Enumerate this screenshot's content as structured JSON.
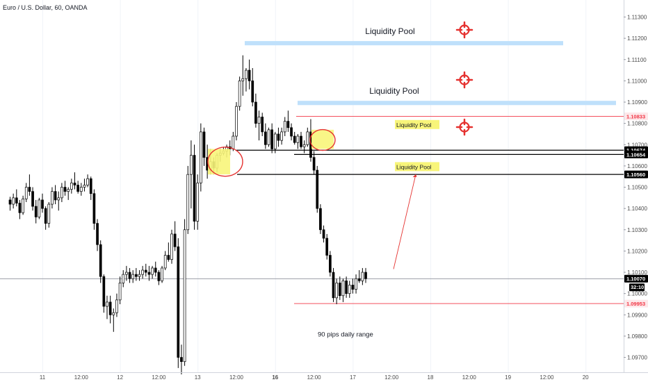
{
  "header": {
    "symbol": "Euro / U.S. Dollar, 60, OANDA"
  },
  "chart_data": {
    "type": "candlestick",
    "title": "Euro / U.S. Dollar, 60, OANDA",
    "ylim": [
      1.0963,
      1.1138
    ],
    "y_ticks": [
      "1.11300",
      "1.11200",
      "1.11100",
      "1.11000",
      "1.10900",
      "1.10800",
      "1.10700",
      "1.10600",
      "1.10500",
      "1.10400",
      "1.10300",
      "1.10200",
      "1.10100",
      "1.10000",
      "1.09900",
      "1.09800",
      "1.09700"
    ],
    "x_ticks": [
      "12:00",
      "11",
      "12:00",
      "12",
      "12:00",
      "13",
      "12:00",
      "16",
      "12:00",
      "17",
      "12:00",
      "18",
      "12:00",
      "19",
      "12:00",
      "20"
    ],
    "x_ticks_bold": [
      "16"
    ],
    "x_tick_hours": [
      -24,
      0,
      12,
      24,
      36,
      48,
      60,
      72,
      84,
      96,
      108,
      120,
      132,
      144,
      156,
      168
    ],
    "last_price": "1.10070",
    "countdown": "32:10",
    "levels": [
      {
        "price": 1.10833,
        "label": "1.10833",
        "color": "#f23645"
      },
      {
        "price": 1.10674,
        "label": "1.10674",
        "color": "#000000"
      },
      {
        "price": 1.10654,
        "label": "1.10654",
        "color": "#000000"
      },
      {
        "price": 1.1056,
        "label": "1.10560",
        "color": "#000000"
      },
      {
        "price": 1.1007,
        "label": "1.10070",
        "color": "#000000"
      },
      {
        "price": 1.09953,
        "label": "1.09953",
        "color": "#f23645"
      }
    ],
    "zones": [
      {
        "label": "Liquidity Pool",
        "from_price": 1.11167,
        "to_price": 1.11187
      },
      {
        "label": "Liquidity Pool",
        "from_price": 1.10886,
        "to_price": 1.10906
      }
    ],
    "notes": [
      {
        "text": "Liquidity Pool",
        "price": 1.10793
      },
      {
        "text": "Liquidity Pool",
        "price": 1.10595
      },
      {
        "text": "90 pips daily range",
        "price": 1.09808
      }
    ],
    "candles": [
      [
        1.1044,
        1.10455,
        1.1039,
        1.1042
      ],
      [
        1.1042,
        1.1047,
        1.104,
        1.1045
      ],
      [
        1.1045,
        1.1049,
        1.1041,
        1.10425
      ],
      [
        1.10425,
        1.1044,
        1.1035,
        1.1038
      ],
      [
        1.1038,
        1.1046,
        1.1037,
        1.10445
      ],
      [
        1.10445,
        1.1052,
        1.1043,
        1.105
      ],
      [
        1.105,
        1.1056,
        1.1046,
        1.1048
      ],
      [
        1.1048,
        1.105,
        1.1039,
        1.1041
      ],
      [
        1.1041,
        1.1044,
        1.1033,
        1.1036
      ],
      [
        1.1036,
        1.1045,
        1.1035,
        1.1044
      ],
      [
        1.1044,
        1.1047,
        1.1038,
        1.104
      ],
      [
        1.104,
        1.1041,
        1.103,
        1.1033
      ],
      [
        1.1033,
        1.1043,
        1.1031,
        1.1042
      ],
      [
        1.1042,
        1.105,
        1.104,
        1.1048
      ],
      [
        1.1048,
        1.1051,
        1.1042,
        1.1044
      ],
      [
        1.1044,
        1.1048,
        1.1039,
        1.1045
      ],
      [
        1.1045,
        1.1052,
        1.1043,
        1.105
      ],
      [
        1.105,
        1.1053,
        1.1046,
        1.1048
      ],
      [
        1.1048,
        1.105,
        1.1044,
        1.1049
      ],
      [
        1.1049,
        1.1054,
        1.1047,
        1.1052
      ],
      [
        1.1052,
        1.1057,
        1.1049,
        1.1051
      ],
      [
        1.1051,
        1.1053,
        1.1047,
        1.1048
      ],
      [
        1.1048,
        1.1052,
        1.1046,
        1.105
      ],
      [
        1.105,
        1.1054,
        1.1048,
        1.1051
      ],
      [
        1.1051,
        1.1056,
        1.105,
        1.1054
      ],
      [
        1.1054,
        1.1055,
        1.1044,
        1.1047
      ],
      [
        1.1047,
        1.1049,
        1.103,
        1.1033
      ],
      [
        1.1033,
        1.1035,
        1.102,
        1.1023
      ],
      [
        1.1023,
        1.1025,
        1.1005,
        1.1008
      ],
      [
        1.1008,
        1.1009,
        1.0991,
        1.0994
      ],
      [
        1.0994,
        1.0999,
        1.0988,
        1.0996
      ],
      [
        1.0996,
        1.0999,
        1.0986,
        1.099
      ],
      [
        1.099,
        1.0993,
        1.0982,
        1.0991
      ],
      [
        1.0991,
        1.1,
        1.0989,
        1.0997
      ],
      [
        1.0997,
        1.1008,
        1.0995,
        1.1005
      ],
      [
        1.1005,
        1.1011,
        1.1003,
        1.1009
      ],
      [
        1.1009,
        1.1013,
        1.1006,
        1.101
      ],
      [
        1.101,
        1.1012,
        1.1005,
        1.1007
      ],
      [
        1.1007,
        1.1011,
        1.1005,
        1.1009
      ],
      [
        1.1009,
        1.1012,
        1.1006,
        1.1008
      ],
      [
        1.1008,
        1.1011,
        1.1006,
        1.1009
      ],
      [
        1.1009,
        1.1013,
        1.1007,
        1.1011
      ],
      [
        1.1011,
        1.1014,
        1.1008,
        1.101
      ],
      [
        1.101,
        1.1013,
        1.1006,
        1.1009
      ],
      [
        1.1009,
        1.1013,
        1.1007,
        1.1012
      ],
      [
        1.1012,
        1.1015,
        1.1008,
        1.101
      ],
      [
        1.101,
        1.1011,
        1.1004,
        1.1006
      ],
      [
        1.1006,
        1.1013,
        1.1005,
        1.1012
      ],
      [
        1.1012,
        1.102,
        1.1011,
        1.1018
      ],
      [
        1.1018,
        1.1024,
        1.1015,
        1.1016
      ],
      [
        1.1016,
        1.103,
        1.1014,
        1.1028
      ],
      [
        1.1028,
        1.1034,
        1.102,
        1.1022
      ],
      [
        1.1022,
        1.1026,
        1.0965,
        1.097
      ],
      [
        1.097,
        1.0976,
        1.0962,
        1.0968
      ],
      [
        1.0968,
        1.1035,
        1.0966,
        1.103
      ],
      [
        1.103,
        1.106,
        1.1028,
        1.1056
      ],
      [
        1.1056,
        1.1072,
        1.104,
        1.1065
      ],
      [
        1.1065,
        1.107,
        1.103,
        1.1034
      ],
      [
        1.1034,
        1.1056,
        1.103,
        1.1052
      ],
      [
        1.1052,
        1.108,
        1.1048,
        1.1076
      ],
      [
        1.1076,
        1.1078,
        1.106,
        1.1064
      ],
      [
        1.1064,
        1.107,
        1.1054,
        1.1058
      ],
      [
        1.1058,
        1.1068,
        1.1056,
        1.1062
      ],
      [
        1.1062,
        1.1064,
        1.1056,
        1.1059
      ],
      [
        1.1059,
        1.1066,
        1.1057,
        1.1065
      ],
      [
        1.1065,
        1.1068,
        1.1062,
        1.1066
      ],
      [
        1.1066,
        1.1069,
        1.1065,
        1.1067
      ],
      [
        1.1067,
        1.107,
        1.1064,
        1.1069
      ],
      [
        1.1069,
        1.1072,
        1.1065,
        1.1068
      ],
      [
        1.1068,
        1.1076,
        1.1067,
        1.1074
      ],
      [
        1.1074,
        1.109,
        1.1072,
        1.1088
      ],
      [
        1.1088,
        1.1102,
        1.1086,
        1.11
      ],
      [
        1.11,
        1.1112,
        1.1093,
        1.1101
      ],
      [
        1.1101,
        1.1106,
        1.1095,
        1.1105
      ],
      [
        1.1105,
        1.111,
        1.1096,
        1.11
      ],
      [
        1.11,
        1.1106,
        1.1088,
        1.109
      ],
      [
        1.109,
        1.1094,
        1.1078,
        1.108
      ],
      [
        1.108,
        1.1086,
        1.1072,
        1.1083
      ],
      [
        1.1083,
        1.1085,
        1.1074,
        1.1076
      ],
      [
        1.1076,
        1.108,
        1.1068,
        1.107
      ],
      [
        1.107,
        1.1078,
        1.1069,
        1.1077
      ],
      [
        1.1077,
        1.108,
        1.1066,
        1.1068
      ],
      [
        1.1068,
        1.1076,
        1.1066,
        1.1075
      ],
      [
        1.1075,
        1.1078,
        1.1069,
        1.1072
      ],
      [
        1.1072,
        1.1078,
        1.107,
        1.1076
      ],
      [
        1.1076,
        1.1083,
        1.1074,
        1.1081
      ],
      [
        1.1081,
        1.1086,
        1.1076,
        1.1078
      ],
      [
        1.1078,
        1.108,
        1.1072,
        1.1074
      ],
      [
        1.1074,
        1.1076,
        1.107,
        1.1071
      ],
      [
        1.1071,
        1.1075,
        1.1068,
        1.1074
      ],
      [
        1.1074,
        1.1076,
        1.1068,
        1.1069
      ],
      [
        1.1069,
        1.1072,
        1.1066,
        1.107
      ],
      [
        1.107,
        1.1078,
        1.1069,
        1.1076
      ],
      [
        1.1076,
        1.1082,
        1.1062,
        1.1064
      ],
      [
        1.1064,
        1.1067,
        1.1056,
        1.1058
      ],
      [
        1.1058,
        1.106,
        1.1038,
        1.104
      ],
      [
        1.104,
        1.1042,
        1.1028,
        1.103
      ],
      [
        1.103,
        1.1032,
        1.1024,
        1.1026
      ],
      [
        1.1026,
        1.1028,
        1.1016,
        1.1018
      ],
      [
        1.1018,
        1.102,
        1.1008,
        1.101
      ],
      [
        1.101,
        1.1012,
        1.0996,
        1.0998
      ],
      [
        1.0998,
        1.1007,
        1.0995,
        1.1005
      ],
      [
        1.1005,
        1.1008,
        1.0997,
        1.0999
      ],
      [
        1.0999,
        1.1007,
        1.0996,
        1.1006
      ],
      [
        1.1006,
        1.1008,
        1.0998,
        1.1
      ],
      [
        1.1,
        1.1006,
        1.0998,
        1.1004
      ],
      [
        1.1004,
        1.1007,
        1.1,
        1.1002
      ],
      [
        1.1002,
        1.1009,
        1.1,
        1.1007
      ],
      [
        1.1007,
        1.1011,
        1.1005,
        1.1006
      ],
      [
        1.1006,
        1.1012,
        1.1004,
        1.101
      ],
      [
        1.101,
        1.1012,
        1.1005,
        1.1007
      ]
    ],
    "candle_colors": {
      "up": "#ffffff",
      "down": "#000000",
      "border": "#000000"
    }
  }
}
